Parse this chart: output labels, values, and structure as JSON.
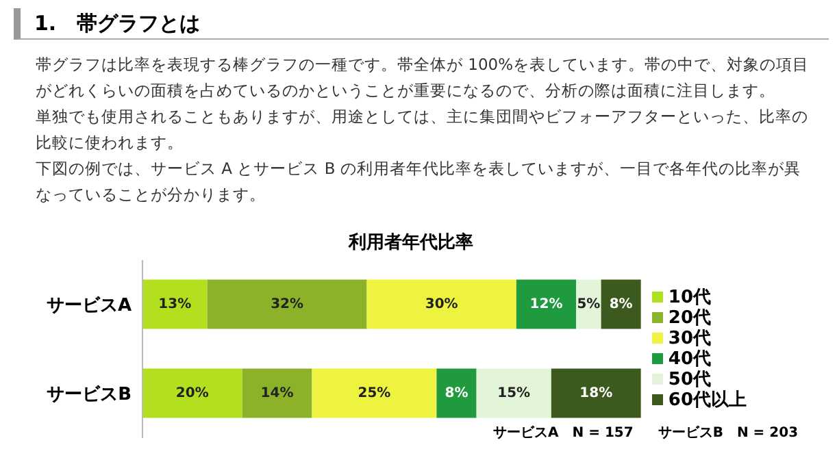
{
  "chart_data": {
    "type": "bar",
    "orientation": "horizontal",
    "stacked": true,
    "title": "利用者年代比率",
    "annotations": [
      "1.　帯グラフとは",
      "帯グラフは比率を表現する棒グラフの一種です。帯全体が 100%を表しています。帯の中で、対象の項目がどれくらいの面積を占めているのかということが重要になるので、分析の際は面積に注目します。",
      "単独でも使用されることもありますが、用途としては、主に集団間やビフォーアフターといった、比率の比較に使われます。",
      "下図の例では、サービス A とサービス B の利用者年代比率を表していますが、一目で各年代の比率が異なっていることが分かります。",
      "サービスA　N = 157",
      "サービスB　N = 203"
    ],
    "categories": [
      "サービスA",
      "サービスB"
    ],
    "xlim": [
      0,
      100
    ],
    "tick_labels": "y",
    "legend": "right",
    "series": [
      {
        "name": "10代",
        "color": "#b3e01e",
        "values": [
          13,
          20
        ],
        "value_labels": [
          "13%",
          "20%"
        ]
      },
      {
        "name": "20代",
        "color": "#8cb22a",
        "values": [
          32,
          14
        ],
        "value_labels": [
          "32%",
          "14%"
        ]
      },
      {
        "name": "30代",
        "color": "#eef33f",
        "values": [
          30,
          25
        ],
        "value_labels": [
          "30%",
          "25%"
        ]
      },
      {
        "name": "40代",
        "color": "#1f9a3e",
        "values": [
          12,
          8
        ],
        "value_labels": [
          "12%",
          "8%"
        ]
      },
      {
        "name": "50代",
        "color": "#e3f5d9",
        "values": [
          5,
          15
        ],
        "value_labels": [
          "5%",
          "15%"
        ]
      },
      {
        "name": "60代以上",
        "color": "#3c5a1e",
        "values": [
          8,
          18
        ],
        "value_labels": [
          "8%",
          "18%"
        ]
      }
    ]
  }
}
